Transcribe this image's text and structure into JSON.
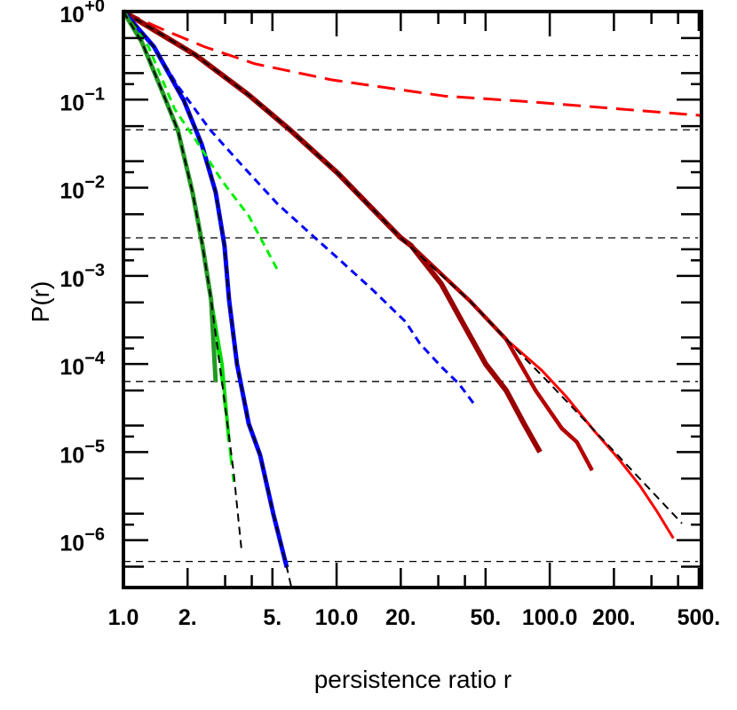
{
  "chart_data": {
    "type": "line",
    "title": "",
    "xlabel": "persistence ratio r",
    "ylabel": "P(r)",
    "x_scale": "log",
    "y_scale": "log",
    "xlim": [
      1,
      515
    ],
    "ylim": [
      2.9e-07,
      1
    ],
    "grid": false,
    "x_ticks": [
      {
        "value": 1,
        "label": "1.0"
      },
      {
        "value": 2,
        "label": "2."
      },
      {
        "value": 5,
        "label": "5."
      },
      {
        "value": 10,
        "label": "10.0"
      },
      {
        "value": 20,
        "label": "20."
      },
      {
        "value": 50,
        "label": "50."
      },
      {
        "value": 100,
        "label": "100.0"
      },
      {
        "value": 200,
        "label": "200."
      },
      {
        "value": 500,
        "label": "500."
      }
    ],
    "y_ticks": [
      {
        "value": 1,
        "base": "10",
        "exp": "+0"
      },
      {
        "value": 0.1,
        "base": "10",
        "exp": "−1"
      },
      {
        "value": 0.01,
        "base": "10",
        "exp": "−2"
      },
      {
        "value": 0.001,
        "base": "10",
        "exp": "−3"
      },
      {
        "value": 0.0001,
        "base": "10",
        "exp": "−4"
      },
      {
        "value": 1e-05,
        "base": "10",
        "exp": "−5"
      },
      {
        "value": 1e-06,
        "base": "10",
        "exp": "−6"
      }
    ],
    "reference_lines": [
      0.3173,
      0.0455,
      0.0027,
      6.33e-05,
      5.73e-07
    ],
    "series": [
      {
        "color": "#ff0000",
        "style": "long-dash",
        "width": 3,
        "x": [
          1,
          1.52,
          2.39,
          4.14,
          9.44,
          32,
          83,
          516
        ],
        "y": [
          1,
          0.63,
          0.4,
          0.255,
          0.168,
          0.11,
          0.094,
          0.066
        ]
      },
      {
        "color": "#ff0000",
        "style": "solid",
        "width": 3,
        "x": [
          1,
          2.18,
          3.87,
          6.07,
          10.1,
          20,
          22.4,
          42.5,
          62.5,
          91.6,
          119,
          163,
          211,
          264,
          319,
          380
        ],
        "y": [
          1,
          0.32,
          0.113,
          0.045,
          0.0147,
          0.0027,
          0.0022,
          0.00051,
          0.00019,
          8.5e-05,
          4.3e-05,
          1.7e-05,
          8.3e-06,
          4.2e-06,
          2.1e-06,
          1.05e-06
        ]
      },
      {
        "color": "#b30000",
        "style": "solid",
        "width": 4.5,
        "x": [
          1,
          2.18,
          3.87,
          6.07,
          10.1,
          20,
          22.4,
          42.5,
          62.5,
          85.8,
          114,
          134,
          158
        ],
        "y": [
          1,
          0.32,
          0.113,
          0.045,
          0.0147,
          0.0027,
          0.0022,
          0.00051,
          0.00019,
          5e-05,
          1.85e-05,
          1.3e-05,
          6.2e-06
        ]
      },
      {
        "color": "#990000",
        "style": "solid",
        "width": 6,
        "x": [
          1,
          2.18,
          3.87,
          6.07,
          10.1,
          20,
          22.4,
          31,
          39.8,
          50,
          62.5,
          75.7,
          90
        ],
        "y": [
          1,
          0.32,
          0.113,
          0.045,
          0.0147,
          0.0027,
          0.0022,
          0.00081,
          0.00027,
          0.0001,
          5e-05,
          2.1e-05,
          1e-05
        ]
      },
      {
        "color": "#000000",
        "style": "dash",
        "width": 2,
        "x": [
          1,
          2.18,
          3.87,
          6.07,
          10.1,
          20,
          42.5,
          62.5,
          98,
          168,
          417
        ],
        "y": [
          1,
          0.32,
          0.113,
          0.045,
          0.0147,
          0.0027,
          0.00051,
          0.00019,
          6.3e-05,
          1.6e-05,
          1.55e-06
        ]
      },
      {
        "color": "#0000ff",
        "style": "dash",
        "width": 3,
        "x": [
          1,
          1.39,
          1.8,
          2.56,
          3.62,
          5.3,
          7.79,
          10.1,
          14.8,
          21.1,
          24.6,
          31,
          37.6,
          44.6
        ],
        "y": [
          1,
          0.4,
          0.143,
          0.045,
          0.0177,
          0.0065,
          0.0028,
          0.0016,
          0.00069,
          0.0003,
          0.00017,
          9.3e-05,
          5.9e-05,
          3.4e-05
        ]
      },
      {
        "color": "#0000ff",
        "style": "solid",
        "width": 5,
        "x": [
          1,
          1.39,
          1.92,
          2.33,
          2.71,
          2.98,
          3.13,
          3.41,
          3.87,
          4.38,
          5.06,
          5.84
        ],
        "y": [
          1,
          0.4,
          0.098,
          0.031,
          0.0089,
          0.0022,
          0.00053,
          0.0001,
          2.1e-05,
          9.2e-06,
          1.95e-06,
          4.9e-07
        ]
      },
      {
        "color": "#000000",
        "style": "dash",
        "width": 2,
        "x": [
          1,
          1.39,
          1.92,
          2.33,
          2.71,
          2.98,
          3.13,
          3.41,
          3.87,
          4.38,
          5.06,
          5.84,
          6.12
        ],
        "y": [
          1,
          0.4,
          0.098,
          0.031,
          0.0089,
          0.0022,
          0.00053,
          0.0001,
          2.1e-05,
          9.2e-06,
          1.95e-06,
          4.9e-07,
          3e-07
        ]
      },
      {
        "color": "#00ee00",
        "style": "dash",
        "width": 3,
        "x": [
          1,
          1.31,
          1.74,
          2.18,
          2.9,
          3.87,
          5.3
        ],
        "y": [
          1,
          0.4,
          0.078,
          0.035,
          0.012,
          0.0048,
          0.00115
        ]
      },
      {
        "color": "#00ee00",
        "style": "long-dash",
        "width": 3,
        "x": [
          1,
          1.22,
          1.52,
          1.8,
          2.11,
          2.35,
          2.58,
          2.9,
          3.29
        ],
        "y": [
          1,
          0.45,
          0.124,
          0.045,
          0.0089,
          0.0022,
          0.00053,
          6.3e-05,
          4.6e-06
        ]
      },
      {
        "color": "#00dd00",
        "style": "solid",
        "width": 4,
        "x": [
          1,
          1.22,
          1.52,
          1.8,
          2.11,
          2.35,
          2.58,
          2.9,
          3.13
        ],
        "y": [
          1,
          0.45,
          0.124,
          0.045,
          0.0089,
          0.0022,
          0.00053,
          0.0001,
          1.3e-05
        ]
      },
      {
        "color": "#229922",
        "style": "solid",
        "width": 5,
        "x": [
          1,
          1.22,
          1.52,
          1.8,
          2.11,
          2.35,
          2.58,
          2.71
        ],
        "y": [
          1,
          0.45,
          0.124,
          0.045,
          0.0089,
          0.0022,
          0.00053,
          6.3e-05
        ]
      },
      {
        "color": "#000000",
        "style": "dash",
        "width": 2,
        "x": [
          1,
          1.22,
          1.52,
          1.8,
          2.11,
          2.35,
          2.58,
          2.9,
          3.29,
          3.58
        ],
        "y": [
          1,
          0.45,
          0.124,
          0.045,
          0.0089,
          0.0022,
          0.00053,
          6.3e-05,
          5.8e-06,
          7.7e-07
        ]
      }
    ]
  }
}
